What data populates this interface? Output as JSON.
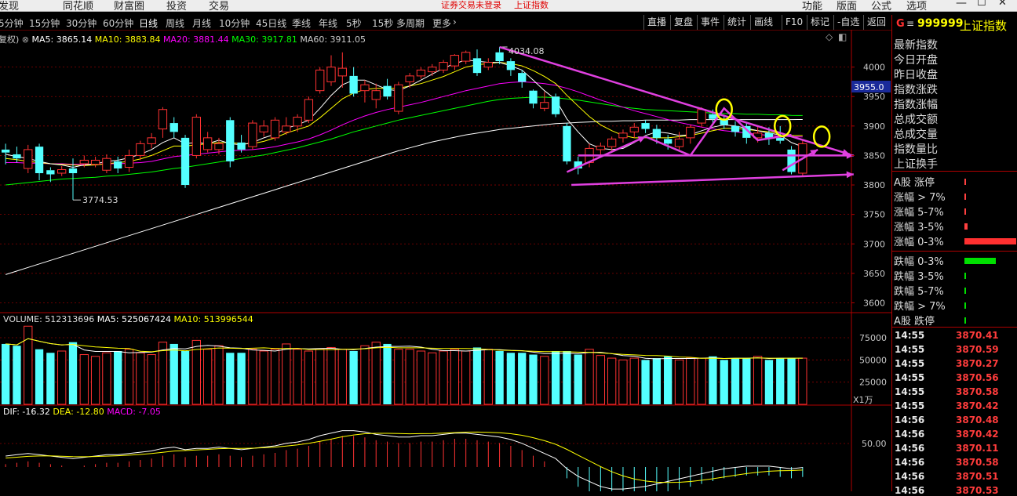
{
  "top_menu": {
    "items": [
      "发现",
      "同花顺",
      "财富圈",
      "投资",
      "交易"
    ],
    "alert": "证券交易未登录",
    "alert_index": "上证指数",
    "right_items": [
      "功能",
      "版面",
      "公式",
      "选项"
    ]
  },
  "period_tabs": [
    "5分钟",
    "15分钟",
    "30分钟",
    "60分钟",
    "日线",
    "周线",
    "月线",
    "10分钟",
    "45日线",
    "季线",
    "年线",
    "5秒",
    "15秒",
    "多周期",
    "更多"
  ],
  "toolbar": [
    "直播",
    "复盘",
    "事件",
    "统计",
    "画线",
    "F10",
    "标记",
    "-自选",
    "返回"
  ],
  "main_indicator": {
    "prefix": "复权)",
    "ma5": "MA5: 3865.14",
    "ma10": "MA10: 3883.84",
    "ma20": "MA20: 3881.44",
    "ma30": "MA30: 3917.81",
    "ma60": "MA60: 3911.05"
  },
  "price_axis": [
    "4000",
    "3950",
    "3900",
    "3850",
    "3800",
    "3750",
    "3700",
    "3650",
    "3600"
  ],
  "current_price_tag": "3955.0",
  "annotations": {
    "high": "4034.08",
    "low": "3774.53"
  },
  "volume_indicator": {
    "title": "VOLUME: 512313696",
    "ma5": "MA5: 525067424",
    "ma10": "MA10: 513996544"
  },
  "volume_axis": [
    "75000",
    "50000",
    "25000"
  ],
  "volume_unit": "X1万",
  "macd_indicator": {
    "dif": "DIF: -16.32",
    "dea": "DEA: -12.80",
    "macd": "MACD: -7.05"
  },
  "macd_axis": [
    "50.00"
  ],
  "side": {
    "code_prefix": "G",
    "code": "999999",
    "name": "上证指数",
    "stats_labels": [
      "最新指数",
      "今日开盘",
      "昨日收盘",
      "指数涨跌",
      "指数涨幅",
      "总成交额",
      "总成交量",
      "指数量比",
      "上证换手"
    ],
    "breadth": [
      {
        "label": "A股 涨停",
        "value": 0.005,
        "color": "#ff4040"
      },
      {
        "label": "涨幅 > 7%",
        "value": 0.02,
        "color": "#ff4040"
      },
      {
        "label": "涨幅 5-7%",
        "value": 0.02,
        "color": "#ff4040"
      },
      {
        "label": "涨幅 3-5%",
        "value": 0.06,
        "color": "#ff4040"
      },
      {
        "label": "涨幅 0-3%",
        "value": 1.0,
        "color": "#ff3030"
      },
      {
        "label": "跌幅 0-3%",
        "value": 0.6,
        "color": "#00e000"
      },
      {
        "label": "跌幅 3-5%",
        "value": 0.03,
        "color": "#00e000"
      },
      {
        "label": "跌幅 5-7%",
        "value": 0.005,
        "color": "#00e000"
      },
      {
        "label": "跌幅 > 7%",
        "value": 0.005,
        "color": "#00e000"
      },
      {
        "label": "A股 跌停",
        "value": 0.005,
        "color": "#00e000"
      }
    ],
    "ticks": [
      {
        "time": "14:55",
        "price": "3870.41"
      },
      {
        "time": "14:55",
        "price": "3870.59"
      },
      {
        "time": "14:55",
        "price": "3870.27"
      },
      {
        "time": "14:55",
        "price": "3870.56"
      },
      {
        "time": "14:55",
        "price": "3870.58"
      },
      {
        "time": "14:55",
        "price": "3870.42"
      },
      {
        "time": "14:56",
        "price": "3870.48"
      },
      {
        "time": "14:56",
        "price": "3870.42"
      },
      {
        "time": "14:56",
        "price": "3870.11"
      },
      {
        "time": "14:56",
        "price": "3870.58"
      },
      {
        "time": "14:56",
        "price": "3870.51"
      },
      {
        "time": "14:56",
        "price": "3870.53"
      }
    ]
  },
  "colors": {
    "up": "#ff3232",
    "down": "#54ffff",
    "ma5": "#ffffff",
    "ma10": "#ffff00",
    "ma20": "#ff00ff",
    "ma30": "#00ff00",
    "ma60": "#ffffff",
    "grid": "#8b0000",
    "annotation": "#e040e0"
  },
  "chart_data": {
    "type": "candlestick",
    "ylim": [
      3590,
      4050
    ],
    "candles": [
      {
        "o": 3860,
        "c": 3855,
        "h": 3870,
        "l": 3835
      },
      {
        "o": 3852,
        "c": 3845,
        "h": 3865,
        "l": 3838
      },
      {
        "o": 3828,
        "c": 3860,
        "h": 3868,
        "l": 3820
      },
      {
        "o": 3865,
        "c": 3820,
        "h": 3870,
        "l": 3808
      },
      {
        "o": 3825,
        "c": 3818,
        "h": 3830,
        "l": 3805
      },
      {
        "o": 3820,
        "c": 3826,
        "h": 3832,
        "l": 3815
      },
      {
        "o": 3828,
        "c": 3820,
        "h": 3845,
        "l": 3774.53
      },
      {
        "o": 3836,
        "c": 3842,
        "h": 3850,
        "l": 3830
      },
      {
        "o": 3835,
        "c": 3842,
        "h": 3848,
        "l": 3830
      },
      {
        "o": 3825,
        "c": 3845,
        "h": 3852,
        "l": 3820
      },
      {
        "o": 3840,
        "c": 3828,
        "h": 3848,
        "l": 3820
      },
      {
        "o": 3830,
        "c": 3850,
        "h": 3860,
        "l": 3822
      },
      {
        "o": 3850,
        "c": 3870,
        "h": 3875,
        "l": 3842
      },
      {
        "o": 3870,
        "c": 3880,
        "h": 3888,
        "l": 3862
      },
      {
        "o": 3895,
        "c": 3928,
        "h": 3932,
        "l": 3880
      },
      {
        "o": 3905,
        "c": 3890,
        "h": 3915,
        "l": 3880
      },
      {
        "o": 3880,
        "c": 3800,
        "h": 3885,
        "l": 3795
      },
      {
        "o": 3850,
        "c": 3915,
        "h": 3920,
        "l": 3845
      },
      {
        "o": 3860,
        "c": 3880,
        "h": 3890,
        "l": 3855
      },
      {
        "o": 3860,
        "c": 3870,
        "h": 3880,
        "l": 3852
      },
      {
        "o": 3910,
        "c": 3840,
        "h": 3915,
        "l": 3830
      },
      {
        "o": 3872,
        "c": 3860,
        "h": 3885,
        "l": 3855
      },
      {
        "o": 3865,
        "c": 3905,
        "h": 3910,
        "l": 3860
      },
      {
        "o": 3890,
        "c": 3900,
        "h": 3910,
        "l": 3882
      },
      {
        "o": 3880,
        "c": 3910,
        "h": 3915,
        "l": 3875
      },
      {
        "o": 3890,
        "c": 3900,
        "h": 3915,
        "l": 3885
      },
      {
        "o": 3900,
        "c": 3915,
        "h": 3920,
        "l": 3890
      },
      {
        "o": 3910,
        "c": 3945,
        "h": 3950,
        "l": 3905
      },
      {
        "o": 3960,
        "c": 3995,
        "h": 4000,
        "l": 3955
      },
      {
        "o": 3975,
        "c": 4000,
        "h": 4020,
        "l": 3968
      },
      {
        "o": 3985,
        "c": 3998,
        "h": 4025,
        "l": 3965
      },
      {
        "o": 3985,
        "c": 3955,
        "h": 4000,
        "l": 3950
      },
      {
        "o": 3960,
        "c": 3970,
        "h": 3978,
        "l": 3940
      },
      {
        "o": 3945,
        "c": 3960,
        "h": 3972,
        "l": 3930
      },
      {
        "o": 3968,
        "c": 3950,
        "h": 3980,
        "l": 3945
      },
      {
        "o": 3925,
        "c": 3970,
        "h": 3975,
        "l": 3920
      },
      {
        "o": 3975,
        "c": 3985,
        "h": 3990,
        "l": 3965
      },
      {
        "o": 3985,
        "c": 3995,
        "h": 4000,
        "l": 3980
      },
      {
        "o": 3992,
        "c": 4000,
        "h": 4005,
        "l": 3985
      },
      {
        "o": 3995,
        "c": 4008,
        "h": 4012,
        "l": 3990
      },
      {
        "o": 4002,
        "c": 4020,
        "h": 4022,
        "l": 3995
      },
      {
        "o": 4010,
        "c": 4025,
        "h": 4028,
        "l": 4005
      },
      {
        "o": 4015,
        "c": 3990,
        "h": 4030,
        "l": 3985
      },
      {
        "o": 4000,
        "c": 4008,
        "h": 4015,
        "l": 3995
      },
      {
        "o": 4025,
        "c": 4010,
        "h": 4034.08,
        "l": 4005
      },
      {
        "o": 4010,
        "c": 3995,
        "h": 4015,
        "l": 3985
      },
      {
        "o": 3990,
        "c": 3975,
        "h": 3995,
        "l": 3965
      },
      {
        "o": 3960,
        "c": 3938,
        "h": 3962,
        "l": 3930
      },
      {
        "o": 3930,
        "c": 3940,
        "h": 3958,
        "l": 3925
      },
      {
        "o": 3950,
        "c": 3920,
        "h": 3955,
        "l": 3915
      },
      {
        "o": 3900,
        "c": 3840,
        "h": 3905,
        "l": 3835
      },
      {
        "o": 3840,
        "c": 3828,
        "h": 3848,
        "l": 3818
      },
      {
        "o": 3838,
        "c": 3862,
        "h": 3870,
        "l": 3830
      },
      {
        "o": 3860,
        "c": 3866,
        "h": 3872,
        "l": 3850
      },
      {
        "o": 3865,
        "c": 3878,
        "h": 3882,
        "l": 3858
      },
      {
        "o": 3880,
        "c": 3888,
        "h": 3894,
        "l": 3872
      },
      {
        "o": 3890,
        "c": 3898,
        "h": 3905,
        "l": 3880
      },
      {
        "o": 3905,
        "c": 3895,
        "h": 3910,
        "l": 3888
      },
      {
        "o": 3895,
        "c": 3880,
        "h": 3902,
        "l": 3870
      },
      {
        "o": 3878,
        "c": 3870,
        "h": 3885,
        "l": 3860
      },
      {
        "o": 3865,
        "c": 3878,
        "h": 3890,
        "l": 3860
      },
      {
        "o": 3880,
        "c": 3898,
        "h": 3902,
        "l": 3870
      },
      {
        "o": 3905,
        "c": 3928,
        "h": 3932,
        "l": 3898
      },
      {
        "o": 3920,
        "c": 3912,
        "h": 3928,
        "l": 3905
      },
      {
        "o": 3912,
        "c": 3902,
        "h": 3918,
        "l": 3895
      },
      {
        "o": 3900,
        "c": 3890,
        "h": 3908,
        "l": 3882
      },
      {
        "o": 3900,
        "c": 3880,
        "h": 3905,
        "l": 3870
      },
      {
        "o": 3880,
        "c": 3888,
        "h": 3900,
        "l": 3872
      },
      {
        "o": 3888,
        "c": 3880,
        "h": 3898,
        "l": 3868
      },
      {
        "o": 3880,
        "c": 3875,
        "h": 3900,
        "l": 3870
      },
      {
        "o": 3860,
        "c": 3822,
        "h": 3866,
        "l": 3818
      },
      {
        "o": 3820,
        "c": 3870,
        "h": 3876,
        "l": 3815
      }
    ],
    "volume": [
      68,
      66,
      88,
      62,
      58,
      60,
      70,
      56,
      54,
      58,
      60,
      62,
      58,
      56,
      70,
      68,
      60,
      72,
      62,
      66,
      58,
      58,
      62,
      60,
      62,
      68,
      62,
      60,
      62,
      64,
      62,
      60,
      66,
      70,
      68,
      62,
      62,
      60,
      58,
      60,
      62,
      60,
      64,
      62,
      60,
      58,
      58,
      56,
      54,
      60,
      60,
      56,
      62,
      55,
      52,
      50,
      52,
      50,
      52,
      54,
      50,
      52,
      52,
      54,
      50,
      52,
      52,
      54,
      50,
      52,
      52,
      52
    ],
    "lines": {
      "ma5": [
        3852,
        3848,
        3845,
        3840,
        3836,
        3834,
        3830,
        3834,
        3836,
        3840,
        3842,
        3846,
        3852,
        3860,
        3872,
        3880,
        3870,
        3872,
        3870,
        3876,
        3870,
        3868,
        3872,
        3880,
        3886,
        3896,
        3902,
        3910,
        3930,
        3952,
        3970,
        3978,
        3978,
        3970,
        3962,
        3960,
        3968,
        3978,
        3988,
        3998,
        4006,
        4012,
        4010,
        4008,
        4008,
        4002,
        3995,
        3978,
        3960,
        3945,
        3912,
        3890,
        3870,
        3862,
        3860,
        3862,
        3872,
        3884,
        3890,
        3888,
        3884,
        3885,
        3892,
        3898,
        3902,
        3900,
        3896,
        3892,
        3888,
        3885,
        3872,
        3865
      ],
      "ma10": [
        3845,
        3843,
        3840,
        3838,
        3836,
        3835,
        3834,
        3833,
        3834,
        3836,
        3838,
        3840,
        3844,
        3850,
        3858,
        3866,
        3866,
        3868,
        3870,
        3872,
        3872,
        3870,
        3870,
        3874,
        3880,
        3888,
        3894,
        3900,
        3914,
        3930,
        3946,
        3956,
        3962,
        3964,
        3964,
        3964,
        3968,
        3972,
        3978,
        3984,
        3992,
        4000,
        4004,
        4006,
        4008,
        4006,
        4002,
        3994,
        3984,
        3972,
        3952,
        3934,
        3916,
        3902,
        3892,
        3884,
        3880,
        3880,
        3880,
        3880,
        3882,
        3884,
        3888,
        3892,
        3896,
        3896,
        3894,
        3892,
        3890,
        3888,
        3884,
        3883.84
      ],
      "ma20": [
        3838,
        3838,
        3837,
        3837,
        3836,
        3836,
        3835,
        3835,
        3835,
        3836,
        3836,
        3837,
        3838,
        3840,
        3844,
        3848,
        3850,
        3852,
        3854,
        3856,
        3858,
        3859,
        3860,
        3862,
        3865,
        3869,
        3873,
        3878,
        3885,
        3893,
        3902,
        3910,
        3917,
        3923,
        3928,
        3932,
        3936,
        3940,
        3945,
        3950,
        3955,
        3960,
        3964,
        3968,
        3972,
        3974,
        3975,
        3974,
        3972,
        3969,
        3964,
        3958,
        3951,
        3944,
        3938,
        3932,
        3926,
        3921,
        3916,
        3911,
        3906,
        3902,
        3898,
        3895,
        3892,
        3890,
        3888,
        3886,
        3884,
        3883,
        3882,
        3881.44
      ],
      "ma30": [
        3800,
        3802,
        3804,
        3806,
        3808,
        3810,
        3811,
        3812,
        3813,
        3815,
        3816,
        3818,
        3820,
        3822,
        3825,
        3828,
        3830,
        3833,
        3836,
        3839,
        3842,
        3845,
        3848,
        3851,
        3855,
        3859,
        3863,
        3868,
        3873,
        3878,
        3884,
        3890,
        3895,
        3900,
        3905,
        3910,
        3914,
        3918,
        3922,
        3926,
        3930,
        3934,
        3938,
        3942,
        3945,
        3947,
        3948,
        3949,
        3949,
        3948,
        3946,
        3944,
        3941,
        3938,
        3935,
        3932,
        3930,
        3928,
        3927,
        3926,
        3925,
        3924,
        3923,
        3922,
        3921,
        3921,
        3920,
        3920,
        3919,
        3919,
        3918,
        3917.81
      ],
      "ma60": [
        3648,
        3654,
        3660,
        3666,
        3672,
        3678,
        3684,
        3690,
        3696,
        3702,
        3708,
        3714,
        3720,
        3726,
        3732,
        3738,
        3744,
        3750,
        3756,
        3762,
        3768,
        3774,
        3780,
        3786,
        3792,
        3798,
        3804,
        3810,
        3816,
        3822,
        3828,
        3834,
        3840,
        3846,
        3852,
        3858,
        3863,
        3868,
        3873,
        3877,
        3881,
        3885,
        3888,
        3891,
        3894,
        3896,
        3898,
        3900,
        3902,
        3904,
        3905,
        3906,
        3907,
        3908,
        3908,
        3909,
        3909,
        3910,
        3910,
        3910,
        3910,
        3911,
        3911,
        3911,
        3911,
        3911,
        3911,
        3911,
        3911,
        3911,
        3911,
        3911.05
      ]
    },
    "macd": [
      2,
      3,
      4,
      3,
      2,
      1,
      0,
      1,
      2,
      3,
      3,
      4,
      5,
      6,
      8,
      9,
      7,
      8,
      8,
      9,
      8,
      7,
      8,
      9,
      10,
      12,
      13,
      15,
      18,
      20,
      22,
      22,
      21,
      19,
      18,
      17,
      17,
      18,
      18,
      19,
      20,
      20,
      19,
      18,
      17,
      15,
      12,
      8,
      4,
      0,
      -8,
      -14,
      -18,
      -22,
      -24,
      -24,
      -23,
      -22,
      -20,
      -18,
      -16,
      -14,
      -12,
      -10,
      -8,
      -7,
      -6,
      -6,
      -6,
      -7,
      -8,
      -7.05
    ]
  }
}
